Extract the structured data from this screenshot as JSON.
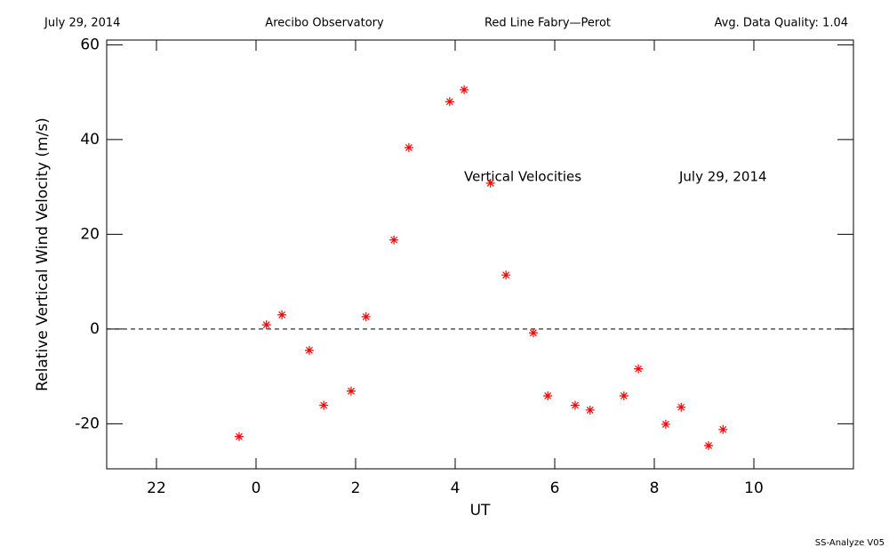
{
  "header": [
    "July 29, 2014",
    "Arecibo Observatory",
    "Red Line Fabry—Perot",
    "Avg. Data Quality: 1.04"
  ],
  "footer": "SS-Analyze V05",
  "chart_data": {
    "type": "scatter",
    "xlabel": "UT",
    "ylabel": "Relative Vertical Wind Velocity (m/s)",
    "annotations": [
      "Vertical Velocities",
      "July 29, 2014"
    ],
    "color": "#ff0000",
    "x": [
      -0.34,
      0.21,
      0.52,
      1.07,
      1.36,
      1.91,
      2.21,
      2.77,
      3.07,
      3.89,
      4.18,
      4.71,
      5.02,
      5.57,
      5.86,
      6.41,
      6.71,
      7.39,
      7.68,
      8.23,
      8.54,
      9.09,
      9.38
    ],
    "values": [
      -22.7,
      0.9,
      3.0,
      -4.5,
      -16.1,
      -13.1,
      2.6,
      18.8,
      38.3,
      48.0,
      50.5,
      30.8,
      11.4,
      -0.8,
      -14.1,
      -16.1,
      -17.1,
      -14.1,
      -8.4,
      -20.1,
      -16.5,
      -24.6,
      -21.2
    ],
    "xlim": [
      -3,
      12
    ],
    "ylim": [
      -29.5,
      61
    ],
    "xticks": [
      {
        "value": -2,
        "label": "22"
      },
      0,
      2,
      4,
      6,
      8,
      10
    ],
    "yticks": [
      -20,
      0,
      20,
      40,
      60
    ],
    "hline": 0
  }
}
